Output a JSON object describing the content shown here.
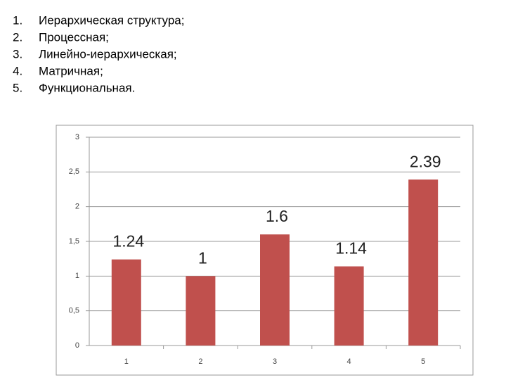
{
  "list": [
    {
      "number": "1.",
      "text": "Иерархическая структура;"
    },
    {
      "number": "2.",
      "text": "Процессная;"
    },
    {
      "number": "3.",
      "text": "Линейно-иерархическая;"
    },
    {
      "number": "4.",
      "text": "Матричная;"
    },
    {
      "number": "5.",
      "text": "Функциональная."
    }
  ],
  "chart_data": {
    "type": "bar",
    "categories": [
      "1",
      "2",
      "3",
      "4",
      "5"
    ],
    "values": [
      1.24,
      1,
      1.6,
      1.14,
      2.39
    ],
    "color": "#c0504d",
    "ylim": [
      0,
      3
    ],
    "yticks": [
      0,
      {
        "value": 0.5,
        "label": "0,5"
      },
      1,
      {
        "value": 1.5,
        "label": "1,5"
      },
      2,
      {
        "value": 2.5,
        "label": "2,5"
      },
      3
    ],
    "grid": true
  }
}
